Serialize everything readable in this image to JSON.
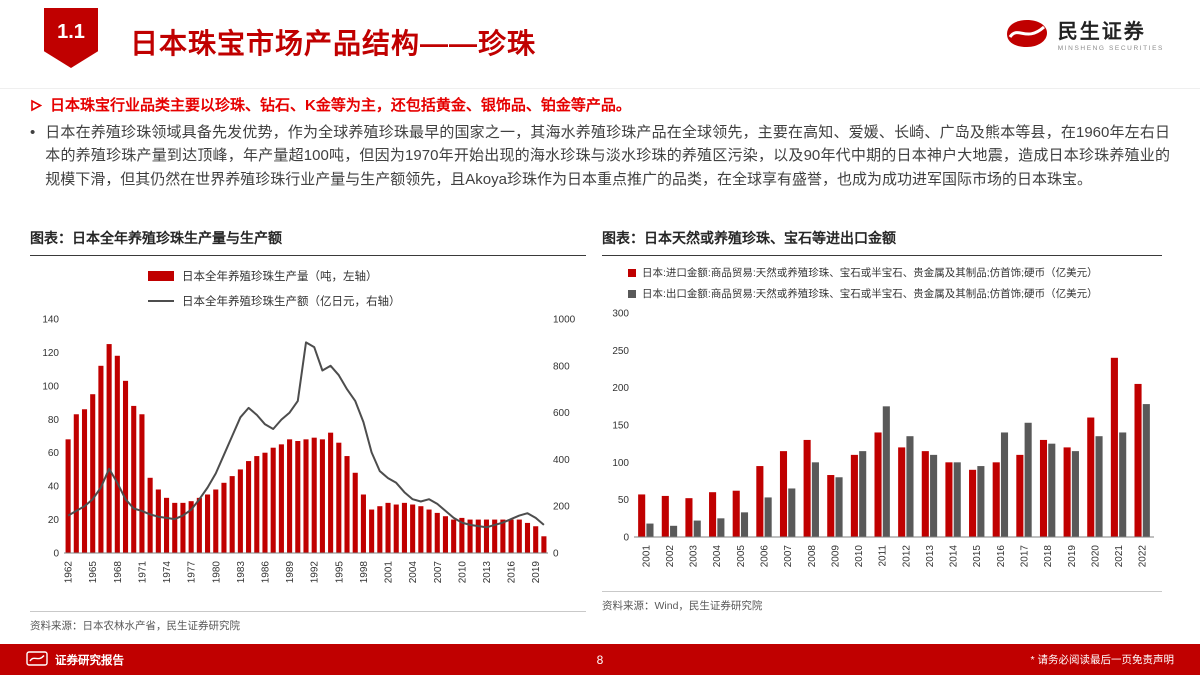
{
  "header": {
    "section_number": "1.1",
    "title": "日本珠宝市场产品结构——珍珠",
    "logo_name": "民生证券",
    "logo_subtitle": "MINSHENG SECURITIES"
  },
  "key_point": "日本珠宝行业品类主要以珍珠、钻石、K金等为主，还包括黄金、银饰品、铂金等产品。",
  "body": {
    "marker": "•",
    "text": "日本在养殖珍珠领域具备先发优势，作为全球养殖珍珠最早的国家之一，其海水养殖珍珠产品在全球领先，主要在高知、爱媛、长崎、广岛及熊本等县，在1960年左右日本的养殖珍珠产量到达顶峰，年产量超100吨，但因为1970年开始出现的海水珍珠与淡水珍珠的养殖区污染，以及90年代中期的日本神户大地震，造成日本珍珠养殖业的规模下滑，但其仍然在世界养殖珍珠行业产量与生产额领先，且Akoya珍珠作为日本重点推广的品类，在全球享有盛誉，也成为成功进军国际市场的日本珠宝。"
  },
  "chart_data": [
    {
      "type": "bar+line",
      "title": "图表：日本全年养殖珍珠生产量与生产额",
      "x": [
        1962,
        1963,
        1964,
        1965,
        1966,
        1967,
        1968,
        1969,
        1970,
        1971,
        1972,
        1973,
        1974,
        1975,
        1976,
        1977,
        1978,
        1979,
        1980,
        1981,
        1982,
        1983,
        1984,
        1985,
        1986,
        1987,
        1988,
        1989,
        1990,
        1991,
        1992,
        1993,
        1994,
        1995,
        1996,
        1997,
        1998,
        1999,
        2000,
        2001,
        2002,
        2003,
        2004,
        2005,
        2006,
        2007,
        2008,
        2009,
        2010,
        2011,
        2012,
        2013,
        2014,
        2015,
        2016,
        2017,
        2018,
        2019,
        2020
      ],
      "x_tick_step": 3,
      "series": [
        {
          "name": "日本全年养殖珍珠生产量（吨，左轴）",
          "chart": "bar",
          "axis": "left",
          "color": "#c00000",
          "values": [
            68,
            83,
            86,
            95,
            112,
            125,
            118,
            103,
            88,
            83,
            45,
            38,
            33,
            30,
            30,
            31,
            33,
            35,
            38,
            42,
            46,
            50,
            55,
            58,
            60,
            63,
            65,
            68,
            67,
            68,
            69,
            68,
            72,
            66,
            58,
            48,
            35,
            26,
            28,
            30,
            29,
            30,
            29,
            28,
            26,
            24,
            22,
            20,
            21,
            20,
            20,
            20,
            20,
            20,
            20,
            20,
            18,
            16,
            10
          ]
        },
        {
          "name": "日本全年养殖珍珠生产额（亿日元，右轴）",
          "chart": "line",
          "axis": "right",
          "color": "#4d4d4d",
          "values": [
            160,
            180,
            200,
            230,
            280,
            360,
            300,
            230,
            190,
            180,
            165,
            155,
            150,
            145,
            160,
            185,
            230,
            280,
            340,
            420,
            500,
            580,
            620,
            590,
            550,
            530,
            570,
            600,
            650,
            900,
            880,
            780,
            800,
            760,
            700,
            650,
            560,
            430,
            350,
            320,
            300,
            260,
            230,
            220,
            230,
            210,
            180,
            150,
            130,
            120,
            115,
            110,
            120,
            130,
            145,
            160,
            170,
            150,
            120
          ]
        }
      ],
      "axes": {
        "left": {
          "min": 0,
          "max": 140,
          "ticks": [
            0,
            20,
            40,
            60,
            80,
            100,
            120,
            140
          ]
        },
        "right": {
          "min": 0,
          "max": 1000,
          "ticks": [
            0,
            200,
            400,
            600,
            800,
            1000
          ]
        }
      },
      "grid": "off",
      "legend_position": "top",
      "source": "资料来源：日本农林水产省，民生证券研究院"
    },
    {
      "type": "bar",
      "title": "图表：日本天然或养殖珍珠、宝石等进出口金额",
      "x": [
        2001,
        2002,
        2003,
        2004,
        2005,
        2006,
        2007,
        2008,
        2009,
        2010,
        2011,
        2012,
        2013,
        2014,
        2015,
        2016,
        2017,
        2018,
        2019,
        2020,
        2021,
        2022
      ],
      "series": [
        {
          "name": "日本:进口金额:商品贸易:天然或养殖珍珠、宝石或半宝石、贵金属及其制品;仿首饰;硬币（亿美元）",
          "color": "#c00000",
          "values": [
            57,
            55,
            52,
            60,
            62,
            95,
            115,
            130,
            83,
            110,
            140,
            120,
            115,
            100,
            90,
            100,
            110,
            130,
            120,
            160,
            240,
            205
          ]
        },
        {
          "name": "日本:出口金额:商品贸易:天然或养殖珍珠、宝石或半宝石、贵金属及其制品;仿首饰;硬币（亿美元）",
          "color": "#595959",
          "values": [
            18,
            15,
            22,
            25,
            33,
            53,
            65,
            100,
            80,
            115,
            175,
            135,
            110,
            100,
            95,
            140,
            153,
            125,
            115,
            135,
            140,
            178
          ]
        }
      ],
      "axes": {
        "y": {
          "min": 0,
          "max": 300,
          "ticks": [
            0,
            50,
            100,
            150,
            200,
            250,
            300
          ]
        }
      },
      "grid": "off",
      "legend_position": "top",
      "source": "资料来源：Wind，民生证券研究院"
    }
  ],
  "footer": {
    "report_type": "证券研究报告",
    "page_number": "8",
    "disclaimer": "* 请务必阅读最后一页免责声明"
  },
  "colors": {
    "brand_red": "#c00000",
    "highlight_red": "#e60000",
    "dark_gray": "#595959",
    "line_gray": "#4d4d4d"
  }
}
